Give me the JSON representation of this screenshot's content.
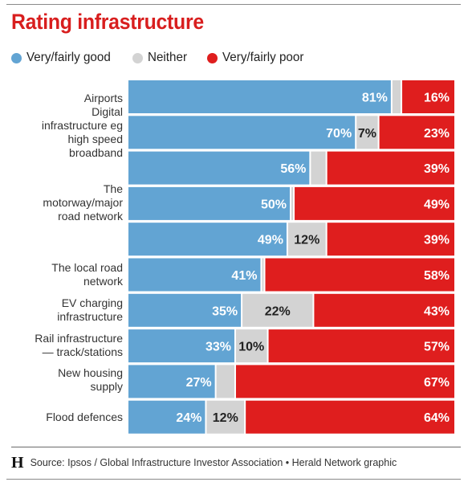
{
  "title": "Rating infrastructure",
  "legend": [
    {
      "label": "Very/fairly good",
      "color": "#62a4d3"
    },
    {
      "label": "Neither",
      "color": "#d3d3d3"
    },
    {
      "label": "Very/fairly poor",
      "color": "#df1e1e"
    }
  ],
  "footer": {
    "logo": "H",
    "source": "Source: Ipsos / Global Infrastructure Investor Association • Herald Network graphic"
  },
  "chart_data": {
    "type": "bar",
    "orientation": "horizontal",
    "stacked": true,
    "title": "Rating infrastructure",
    "row_labels": [
      [
        "Airports",
        "Digital",
        "infrastructure eg",
        "high speed",
        "broadband"
      ],
      [],
      [],
      [
        "The",
        "motorway/major",
        "road network"
      ],
      [],
      [
        "The local road",
        "network"
      ],
      [
        "EV charging",
        "infrastructure"
      ],
      [
        "Rail infrastructure",
        "— track/stations"
      ],
      [
        "New housing",
        "supply"
      ],
      [
        "Flood defences"
      ]
    ],
    "series": [
      {
        "name": "Very/fairly good",
        "color": "#62a4d3",
        "values": [
          81,
          70,
          56,
          50,
          49,
          41,
          35,
          33,
          27,
          24
        ],
        "labels": [
          "81%",
          "70%",
          "56%",
          "50%",
          "49%",
          "41%",
          "35%",
          "33%",
          "27%",
          "24%"
        ]
      },
      {
        "name": "Neither",
        "color": "#d3d3d3",
        "values": [
          3,
          7,
          5,
          1,
          12,
          1,
          22,
          10,
          6,
          12
        ],
        "labels": [
          "",
          "7%",
          "",
          "",
          "12%",
          "",
          "22%",
          "10%",
          "",
          "12%"
        ]
      },
      {
        "name": "Very/fairly poor",
        "color": "#df1e1e",
        "values": [
          16,
          23,
          39,
          49,
          39,
          58,
          43,
          57,
          67,
          64
        ],
        "labels": [
          "16%",
          "23%",
          "39%",
          "49%",
          "39%",
          "58%",
          "43%",
          "57%",
          "67%",
          "64%"
        ]
      }
    ]
  }
}
